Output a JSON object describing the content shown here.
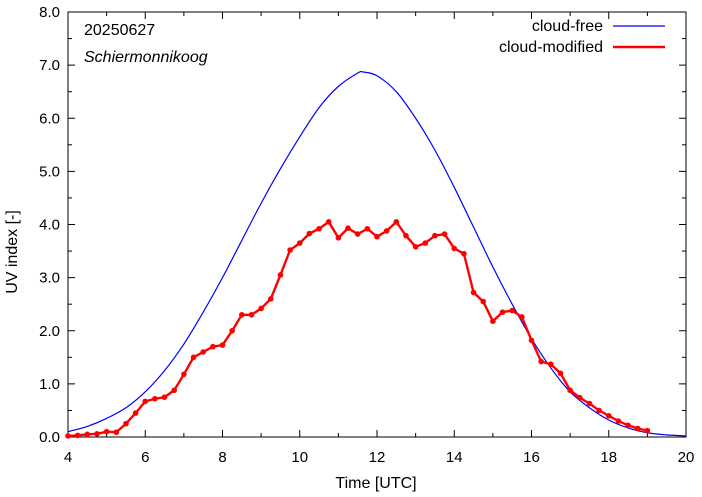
{
  "chart_data": {
    "type": "line",
    "xlabel": "Time  [UTC]",
    "ylabel": "UV index  [-]",
    "xlim": [
      4,
      20
    ],
    "ylim": [
      0,
      8
    ],
    "x_ticks": [
      4,
      6,
      8,
      10,
      12,
      14,
      16,
      18,
      20
    ],
    "x_tick_labels": [
      "4",
      "6",
      "8",
      "10",
      "12",
      "14",
      "16",
      "18",
      "20"
    ],
    "y_ticks": [
      0,
      1,
      2,
      3,
      4,
      5,
      6,
      7,
      8
    ],
    "y_tick_labels": [
      "0.0",
      "1.0",
      "2.0",
      "3.0",
      "4.0",
      "5.0",
      "6.0",
      "7.0",
      "8.0"
    ],
    "annotations": [
      "20250627",
      "Schiermonnikoog"
    ],
    "legend_position": "top-right",
    "grid": false,
    "series": [
      {
        "name": "cloud-free",
        "color": "#0000ff",
        "markers": false,
        "x": [
          4.0,
          4.5,
          5.0,
          5.5,
          6.0,
          6.5,
          7.0,
          7.5,
          8.0,
          8.5,
          9.0,
          9.5,
          10.0,
          10.5,
          11.0,
          11.5,
          11.65,
          12.0,
          12.5,
          13.0,
          13.5,
          14.0,
          14.5,
          15.0,
          15.5,
          16.0,
          16.5,
          17.0,
          17.5,
          18.0,
          18.5,
          19.0,
          19.5,
          20.0
        ],
        "y": [
          0.1,
          0.2,
          0.35,
          0.55,
          0.85,
          1.25,
          1.75,
          2.35,
          3.0,
          3.7,
          4.4,
          5.05,
          5.65,
          6.2,
          6.6,
          6.85,
          6.87,
          6.8,
          6.5,
          6.0,
          5.4,
          4.7,
          3.95,
          3.2,
          2.5,
          1.85,
          1.3,
          0.85,
          0.55,
          0.32,
          0.17,
          0.08,
          0.04,
          0.02
        ]
      },
      {
        "name": "cloud-modified",
        "color": "#ff0000",
        "markers": true,
        "x": [
          4.0,
          4.25,
          4.5,
          4.75,
          5.0,
          5.25,
          5.5,
          5.75,
          6.0,
          6.25,
          6.5,
          6.75,
          7.0,
          7.25,
          7.5,
          7.75,
          8.0,
          8.25,
          8.5,
          8.75,
          9.0,
          9.25,
          9.5,
          9.75,
          10.0,
          10.25,
          10.5,
          10.75,
          11.0,
          11.25,
          11.5,
          11.75,
          12.0,
          12.25,
          12.5,
          12.75,
          13.0,
          13.25,
          13.5,
          13.75,
          14.0,
          14.25,
          14.5,
          14.75,
          15.0,
          15.25,
          15.5,
          15.75,
          16.0,
          16.25,
          16.5,
          16.75,
          17.0,
          17.25,
          17.5,
          17.75,
          18.0,
          18.25,
          18.5,
          18.75,
          19.0
        ],
        "y": [
          0.02,
          0.03,
          0.05,
          0.06,
          0.1,
          0.09,
          0.25,
          0.45,
          0.67,
          0.72,
          0.75,
          0.88,
          1.18,
          1.5,
          1.6,
          1.7,
          1.73,
          2.0,
          2.3,
          2.3,
          2.42,
          2.6,
          3.05,
          3.52,
          3.65,
          3.83,
          3.92,
          4.05,
          3.75,
          3.93,
          3.82,
          3.92,
          3.77,
          3.88,
          4.05,
          3.79,
          3.58,
          3.65,
          3.79,
          3.82,
          3.55,
          3.45,
          2.72,
          2.55,
          2.18,
          2.35,
          2.38,
          2.26,
          1.82,
          1.42,
          1.37,
          1.2,
          0.88,
          0.74,
          0.63,
          0.5,
          0.4,
          0.3,
          0.22,
          0.16,
          0.12
        ]
      }
    ]
  }
}
